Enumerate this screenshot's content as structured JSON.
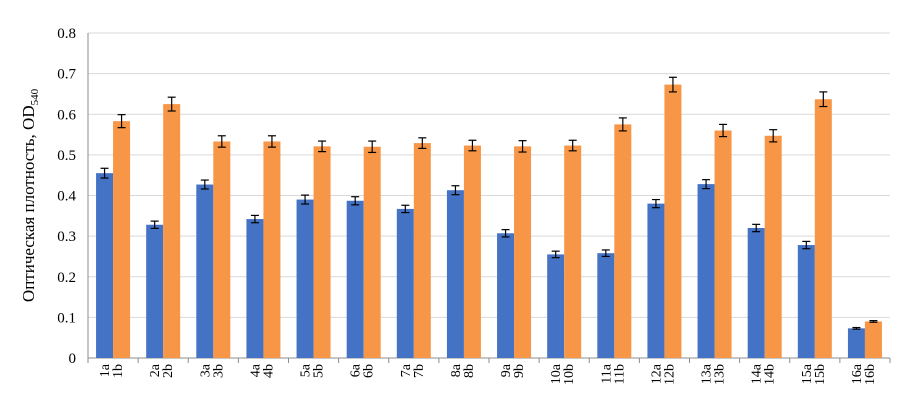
{
  "chart_data": {
    "type": "bar",
    "ylabel": "Оптическая плотность, OD",
    "ylabel_sub": "540",
    "ylim": [
      0,
      0.8
    ],
    "yticks": [
      "0",
      "0.1",
      "0.2",
      "0.3",
      "0.4",
      "0.5",
      "0.6",
      "0.7",
      "0.8"
    ],
    "grid": true,
    "legend": "none",
    "categories": [
      [
        "1a",
        "1b"
      ],
      [
        "2a",
        "2b"
      ],
      [
        "3a",
        "3b"
      ],
      [
        "4a",
        "4b"
      ],
      [
        "5a",
        "5b"
      ],
      [
        "6a",
        "6b"
      ],
      [
        "7a",
        "7b"
      ],
      [
        "8a",
        "8b"
      ],
      [
        "9a",
        "9b"
      ],
      [
        "10a",
        "10b"
      ],
      [
        "11a",
        "11b"
      ],
      [
        "12a",
        "12b"
      ],
      [
        "13a",
        "13b"
      ],
      [
        "14a",
        "14b"
      ],
      [
        "15a",
        "15b"
      ],
      [
        "16a",
        "16b"
      ]
    ],
    "series": [
      {
        "color": "#4472c4",
        "values": [
          0.455,
          0.328,
          0.427,
          0.342,
          0.39,
          0.387,
          0.367,
          0.413,
          0.307,
          0.255,
          0.258,
          0.38,
          0.428,
          0.32,
          0.278,
          0.073
        ],
        "errors": [
          0.012,
          0.009,
          0.011,
          0.009,
          0.011,
          0.01,
          0.009,
          0.011,
          0.009,
          0.008,
          0.008,
          0.01,
          0.011,
          0.009,
          0.009,
          0.002
        ]
      },
      {
        "color": "#f79646",
        "values": [
          0.583,
          0.625,
          0.533,
          0.533,
          0.521,
          0.52,
          0.529,
          0.523,
          0.521,
          0.523,
          0.575,
          0.673,
          0.56,
          0.547,
          0.637,
          0.09
        ],
        "errors": [
          0.016,
          0.017,
          0.014,
          0.014,
          0.013,
          0.014,
          0.013,
          0.013,
          0.014,
          0.013,
          0.016,
          0.018,
          0.015,
          0.015,
          0.018,
          0.002
        ]
      }
    ]
  }
}
